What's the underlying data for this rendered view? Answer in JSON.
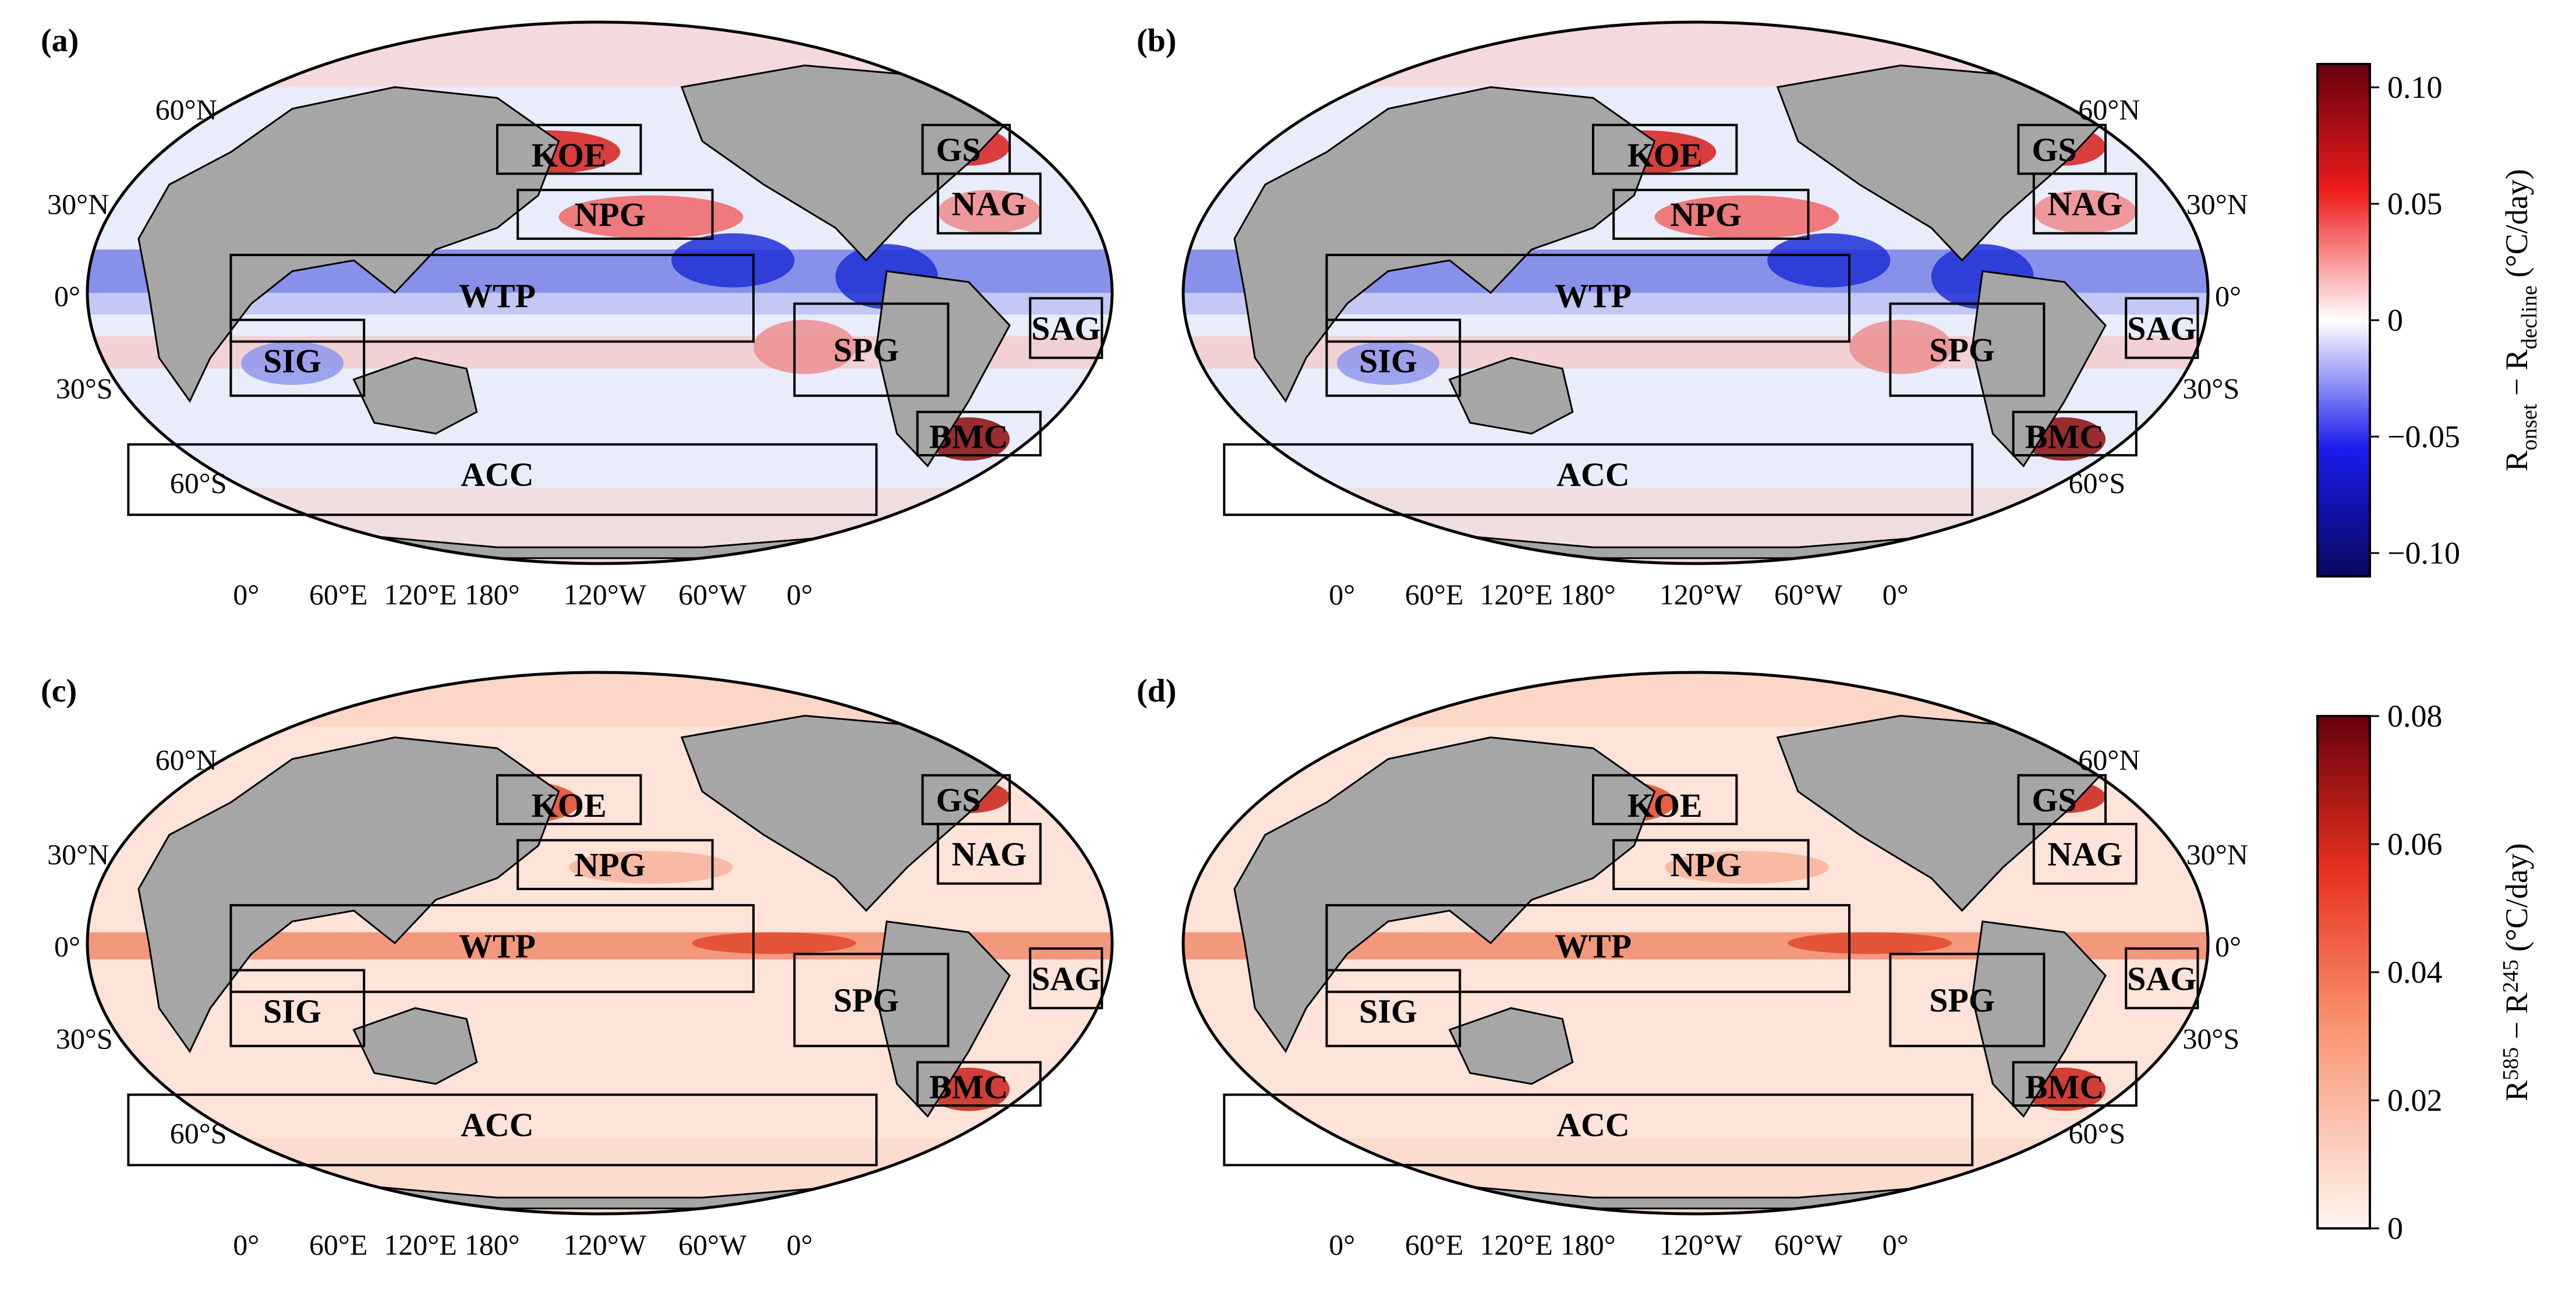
{
  "figure": {
    "panels": [
      {
        "id": "a",
        "label": "(a)",
        "scheme": "diverging"
      },
      {
        "id": "b",
        "label": "(b)",
        "scheme": "diverging"
      },
      {
        "id": "c",
        "label": "(c)",
        "scheme": "sequential"
      },
      {
        "id": "d",
        "label": "(d)",
        "scheme": "sequential"
      }
    ],
    "regions": [
      "KOE",
      "GS",
      "NPG",
      "NAG",
      "WTP",
      "SPG",
      "SAG",
      "SIG",
      "BMC",
      "ACC"
    ],
    "lat_ticks": {
      "n60": "60°N",
      "n30": "30°N",
      "eq": "0°",
      "s30": "30°S",
      "s60": "60°S"
    },
    "lon_ticks": [
      "0°",
      "60°E",
      "120°E",
      "180°",
      "120°W",
      "60°W",
      "0°"
    ],
    "colorbars": {
      "top": {
        "ticks": [
          "0.10",
          "0.05",
          "0",
          "−0.05",
          "−0.10"
        ],
        "label_main": "R",
        "label_sub1": "onset",
        "label_mid": " − R",
        "label_sub2": "decline",
        "label_unit": " (°C/day)",
        "range": [
          -0.11,
          0.11
        ]
      },
      "bottom": {
        "ticks": [
          "0.08",
          "0.06",
          "0.04",
          "0.02",
          "0"
        ],
        "label_main": "R",
        "label_sup1": "585",
        "label_mid": " − R",
        "label_sup2": "245",
        "label_unit": " (°C/day)",
        "range": [
          0,
          0.08
        ]
      }
    },
    "colors": {
      "land": "#a6a6a6",
      "ocean_white": "#f7f3f1",
      "blue": "#1f2fd6",
      "red": "#d6201a",
      "dark_red": "#8a0b0b",
      "pink": "#f5c5b6"
    }
  },
  "chart_data": {
    "type": "heatmap",
    "title": "",
    "projection": "Robinson (Pacific-centred)",
    "panels": [
      "(a)",
      "(b)",
      "(c)",
      "(d)"
    ],
    "top_colorbar": {
      "label": "R_onset − R_decline (°C/day)",
      "min": -0.11,
      "max": 0.11,
      "ticks": [
        0.1,
        0.05,
        0,
        -0.05,
        -0.1
      ]
    },
    "bottom_colorbar": {
      "label": "R^585 − R^245 (°C/day)",
      "min": 0,
      "max": 0.08,
      "ticks": [
        0.08,
        0.06,
        0.04,
        0.02,
        0
      ]
    },
    "regions": [
      "KOE",
      "GS",
      "NPG",
      "NAG",
      "WTP",
      "SPG",
      "SAG",
      "SIG",
      "BMC",
      "ACC"
    ]
  }
}
